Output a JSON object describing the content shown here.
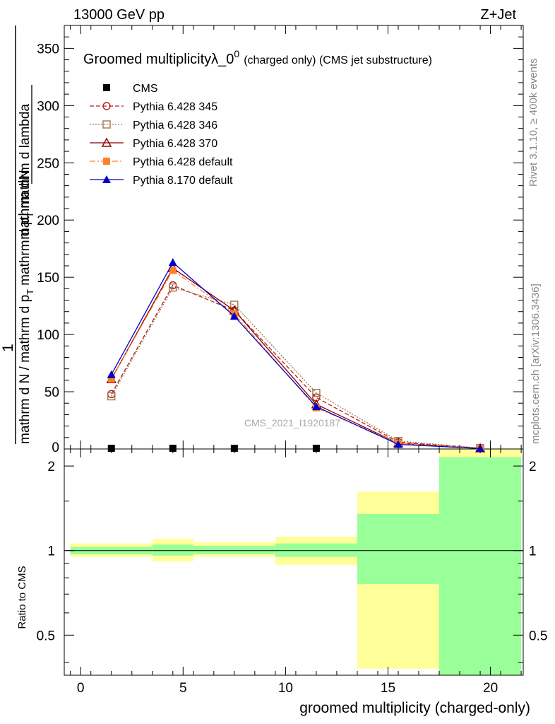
{
  "header": {
    "left": "13000 GeV pp",
    "right": "Z+Jet"
  },
  "side": {
    "rivet": "Rivet 3.1.10, ≥ 400k events",
    "mcplots": "mcplots.cern.ch [arXiv:1306.3436]"
  },
  "chart_data": [
    {
      "type": "line",
      "title": "Groomed multiplicityλ_0⁰ (charged only) (CMS jet substructure)",
      "title_main": "Groomed multiplicityλ_0",
      "title_sup": "0",
      "title_tail": "(charged only) (CMS jet substructure)",
      "ylabel_top": "1",
      "ylabel_num": "mathrm dN",
      "ylabel_den1": "mathrm d N / mathrm d p",
      "ylabel_den_sub": "T",
      "ylabel_den2": "mathrm d p",
      "ylabel_den2_sub": "T",
      "ylabel_den3": "mathrm d lambda",
      "watermark": "CMS_2021_I1920187",
      "xlim": [
        -0.8,
        21.6
      ],
      "ylim": [
        0,
        370
      ],
      "yticks": [
        50,
        100,
        150,
        200,
        250,
        300,
        350
      ],
      "ytick_labels": [
        "50",
        "100",
        "150",
        "200",
        "250",
        "300",
        "350"
      ],
      "ytick_zero_label": "0",
      "legend_position": "top-left",
      "series": [
        {
          "name": "CMS",
          "color": "#000000",
          "marker": "square-filled",
          "dash": "",
          "x": [
            1.5,
            4.5,
            7.5,
            11.5
          ],
          "y": [
            0.5,
            0.5,
            0.5,
            0.5
          ]
        },
        {
          "name": "Pythia 6.428 345",
          "color": "#b22222",
          "marker": "circle-open",
          "dash": "6,3",
          "x": [
            1.5,
            4.5,
            7.5,
            11.5,
            15.5,
            19.5
          ],
          "y": [
            48,
            143,
            121,
            45,
            6,
            0.6
          ]
        },
        {
          "name": "Pythia 6.428 346",
          "color": "#a0784a",
          "marker": "square-open",
          "dash": "2,2",
          "x": [
            1.5,
            4.5,
            7.5,
            11.5,
            15.5,
            19.5
          ],
          "y": [
            46,
            141,
            126,
            49,
            7,
            0.8
          ]
        },
        {
          "name": "Pythia 6.428 370",
          "color": "#8b0000",
          "marker": "triangle-open",
          "dash": "",
          "x": [
            1.5,
            4.5,
            7.5,
            11.5,
            15.5,
            19.5
          ],
          "y": [
            61,
            158,
            121,
            39,
            5,
            0.5
          ]
        },
        {
          "name": "Pythia 6.428 default",
          "color": "#ff7f2a",
          "marker": "square-filled",
          "dash": "8,3,2,3",
          "x": [
            1.5,
            4.5,
            7.5,
            11.5,
            15.5,
            19.5
          ],
          "y": [
            61,
            156,
            118,
            36,
            5,
            0.5
          ]
        },
        {
          "name": "Pythia 8.170 default",
          "color": "#0000cc",
          "marker": "triangle-filled",
          "dash": "",
          "x": [
            1.5,
            4.5,
            7.5,
            11.5,
            15.5,
            19.5
          ],
          "y": [
            65,
            163,
            116,
            37,
            4,
            0.4
          ]
        }
      ]
    },
    {
      "type": "area",
      "xlabel": "groomed multiplicity (charged-only)",
      "ylabel": "Ratio to CMS",
      "xlim": [
        -0.8,
        21.6
      ],
      "ylim": [
        0.36,
        2.3
      ],
      "scale": "log",
      "xticks": [
        0,
        5,
        10,
        15,
        20
      ],
      "xtick_labels": [
        "0",
        "5",
        "10",
        "15",
        "20"
      ],
      "yticks": [
        0.5,
        1,
        2
      ],
      "ytick_labels": [
        "0.5",
        "1",
        "2"
      ],
      "reference_line": 1,
      "bands": [
        {
          "x_lo": -0.5,
          "x_hi": 3.5,
          "inner": [
            0.97,
            1.03
          ],
          "outer": [
            0.95,
            1.06
          ]
        },
        {
          "x_lo": 3.5,
          "x_hi": 5.5,
          "inner": [
            0.96,
            1.05
          ],
          "outer": [
            0.915,
            1.1
          ]
        },
        {
          "x_lo": 5.5,
          "x_hi": 9.5,
          "inner": [
            0.97,
            1.04
          ],
          "outer": [
            0.95,
            1.07
          ]
        },
        {
          "x_lo": 9.5,
          "x_hi": 13.5,
          "inner": [
            0.95,
            1.06
          ],
          "outer": [
            0.89,
            1.12
          ]
        },
        {
          "x_lo": 13.5,
          "x_hi": 17.5,
          "inner": [
            0.76,
            1.35
          ],
          "outer": [
            0.38,
            1.62
          ]
        },
        {
          "x_lo": 17.5,
          "x_hi": 21.5,
          "inner": [
            0.36,
            2.15
          ],
          "outer": [
            0.36,
            2.3
          ]
        }
      ],
      "band_colors": {
        "inner": "#99ff99",
        "outer": "#ffff99"
      }
    }
  ]
}
